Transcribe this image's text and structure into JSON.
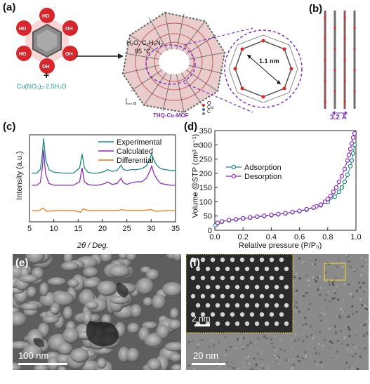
{
  "panel_labels": {
    "a": "(a)",
    "b": "(b)",
    "c": "(c)",
    "d": "(d)",
    "e": "(e)",
    "f": "(f)"
  },
  "panel_a": {
    "conditions_line1": "H₂O, C₂H₈N₂",
    "conditions_line2": "85 °C",
    "plus": "+",
    "reagent": "Cu(NO₃)₂·2.5H₂O",
    "mof_name": "THQ-Cu-MOF",
    "pore_size": "1.1 nm",
    "legend": [
      "O",
      "Cu",
      "C"
    ],
    "axes_hint": "a",
    "colors": {
      "oxygen": "#d8262b",
      "copper": "#3a6fb0",
      "carbon": "#7f7f7f",
      "dashed": "#7b2fbf"
    }
  },
  "panel_b": {
    "spacing": "3.2 Å"
  },
  "panel_e": {
    "scalebar": "100 nm"
  },
  "panel_f": {
    "scalebar_main": "20 nm",
    "scalebar_inset": "2 nm",
    "inset_border_color": "#e8d23c"
  },
  "chart_data": [
    {
      "type": "line",
      "panel": "c",
      "xlabel": "2θ / Deg.",
      "ylabel": "Intensity (a.u.)",
      "xlim": [
        5,
        35
      ],
      "xticks": [
        5,
        10,
        15,
        20,
        25,
        30,
        35
      ],
      "legend_placement": "top-right",
      "series": [
        {
          "name": "Experimental",
          "color": "#1f8a7e",
          "x": [
            5.5,
            6.5,
            7.2,
            7.6,
            7.9,
            8.3,
            9,
            10,
            12,
            14,
            15.3,
            15.8,
            16.3,
            17,
            18,
            19,
            20.5,
            21,
            22,
            23,
            23.8,
            24.3,
            25,
            26,
            27,
            28,
            29,
            29.7,
            30.1,
            30.6,
            31.3,
            32,
            33,
            34,
            35
          ],
          "y": [
            0.56,
            0.56,
            0.6,
            0.75,
            0.96,
            0.72,
            0.6,
            0.57,
            0.56,
            0.56,
            0.62,
            0.78,
            0.62,
            0.57,
            0.56,
            0.56,
            0.58,
            0.6,
            0.58,
            0.59,
            0.65,
            0.6,
            0.59,
            0.6,
            0.6,
            0.61,
            0.64,
            0.72,
            0.78,
            0.7,
            0.64,
            0.61,
            0.6,
            0.59,
            0.59
          ]
        },
        {
          "name": "Calculated",
          "color": "#8a2fc4",
          "x": [
            5.5,
            6.5,
            7.2,
            7.6,
            7.9,
            8.3,
            9,
            10,
            12,
            14,
            15.3,
            15.8,
            16.3,
            17,
            18,
            19,
            20.5,
            21,
            22,
            23,
            23.8,
            24.3,
            25,
            26,
            27,
            28,
            29,
            29.7,
            30.1,
            30.6,
            31.3,
            32,
            33,
            34,
            35
          ],
          "y": [
            0.42,
            0.42,
            0.45,
            0.6,
            0.82,
            0.55,
            0.44,
            0.42,
            0.42,
            0.42,
            0.46,
            0.62,
            0.46,
            0.43,
            0.42,
            0.42,
            0.44,
            0.46,
            0.43,
            0.44,
            0.5,
            0.45,
            0.43,
            0.45,
            0.46,
            0.46,
            0.5,
            0.58,
            0.64,
            0.55,
            0.48,
            0.44,
            0.43,
            0.42,
            0.42
          ]
        },
        {
          "name": "Differential",
          "color": "#e87a10",
          "x": [
            5.5,
            7,
            7.8,
            8.5,
            10,
            12,
            14,
            15.5,
            16,
            17,
            20,
            23,
            24,
            25,
            28,
            30,
            31,
            33,
            35
          ],
          "y": [
            0.13,
            0.13,
            0.16,
            0.12,
            0.13,
            0.13,
            0.13,
            0.11,
            0.15,
            0.13,
            0.13,
            0.13,
            0.14,
            0.13,
            0.13,
            0.14,
            0.12,
            0.13,
            0.13
          ]
        }
      ]
    },
    {
      "type": "scatter",
      "panel": "d",
      "xlabel": "Relative pressure (P/P₀)",
      "ylabel": "Volume @STP (cm³ g⁻¹)",
      "xlim": [
        0.0,
        1.0
      ],
      "ylim": [
        0,
        350
      ],
      "xticks": [
        0.0,
        0.2,
        0.4,
        0.6,
        0.8,
        1.0
      ],
      "yticks": [
        0,
        50,
        100,
        150,
        200,
        250,
        300,
        350
      ],
      "legend_placement": "center-left",
      "series": [
        {
          "name": "Adsorption",
          "color": "#1f8a7e",
          "x": [
            0.005,
            0.02,
            0.05,
            0.1,
            0.15,
            0.2,
            0.25,
            0.3,
            0.35,
            0.4,
            0.45,
            0.5,
            0.55,
            0.6,
            0.65,
            0.7,
            0.75,
            0.8,
            0.85,
            0.88,
            0.9,
            0.92,
            0.94,
            0.96,
            0.97,
            0.98,
            0.99
          ],
          "y": [
            18,
            25,
            30,
            35,
            38,
            41,
            44,
            47,
            50,
            53,
            56,
            59,
            63,
            67,
            72,
            79,
            88,
            100,
            118,
            135,
            150,
            170,
            195,
            225,
            245,
            270,
            300
          ]
        },
        {
          "name": "Desorption",
          "color": "#8a2fc4",
          "x": [
            0.99,
            0.98,
            0.97,
            0.96,
            0.95,
            0.94,
            0.92,
            0.9,
            0.88,
            0.86,
            0.84,
            0.82,
            0.8,
            0.78,
            0.75,
            0.72,
            0.7,
            0.65,
            0.6,
            0.55,
            0.5,
            0.45,
            0.4,
            0.35,
            0.3,
            0.25,
            0.2,
            0.15,
            0.1,
            0.05,
            0.02
          ],
          "y": [
            340,
            325,
            305,
            285,
            265,
            245,
            215,
            190,
            170,
            150,
            135,
            120,
            110,
            100,
            90,
            84,
            80,
            74,
            68,
            64,
            60,
            57,
            54,
            51,
            48,
            45,
            42,
            39,
            36,
            31,
            26
          ]
        }
      ]
    }
  ]
}
